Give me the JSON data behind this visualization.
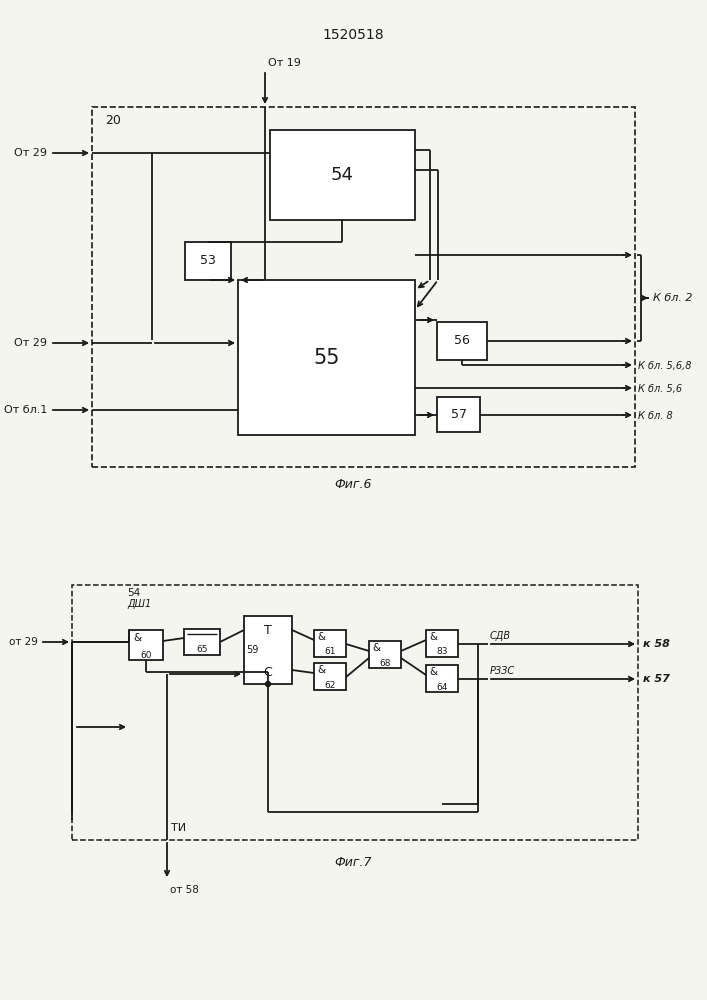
{
  "title": "1520518",
  "fig6_label": "Фиг.6",
  "fig7_label": "Фиг.7",
  "bg_color": "#f5f5f0",
  "line_color": "#1a1a1a",
  "lw": 1.3
}
